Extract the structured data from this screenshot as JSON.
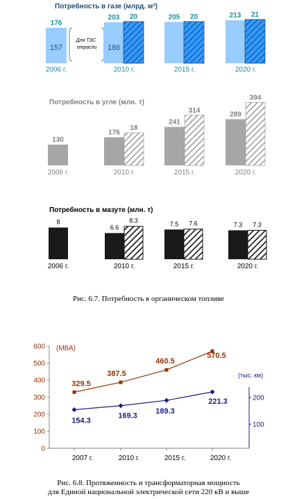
{
  "chart_data": [
    {
      "type": "bar",
      "title": "Потребность в газе (млрд. м³)",
      "categories": [
        "2006 г.",
        "2010 г.",
        "2015 г.",
        "2020 г."
      ],
      "series": [
        {
          "values": [
            176,
            203,
            205,
            213
          ]
        },
        {
          "values": [
            null,
            20,
            20,
            21
          ]
        }
      ],
      "sub_values": [
        157,
        186
      ],
      "sub_annotation": "Для ТЭС отрасли",
      "colors": {
        "light": "#99ccff",
        "hatch": "#3399ff",
        "text": "#1a8c9c",
        "axis": "#1a8c9c"
      }
    },
    {
      "type": "bar",
      "title": "Потребность в угле (млн. т)",
      "categories": [
        "2006 г.",
        "2010 г.",
        "2015 г.",
        "2020 г."
      ],
      "series": [
        {
          "values": [
            130,
            176,
            241,
            289
          ]
        },
        {
          "values": [
            null,
            18,
            314,
            394
          ]
        }
      ],
      "colors": {
        "solid": "#a6a6a6",
        "hatch": "#a6a6a6",
        "text": "#808080"
      }
    },
    {
      "type": "bar",
      "title": "Потребность в мазуте (млн. т)",
      "categories": [
        "2006 г.",
        "2010 г.",
        "2015 г.",
        "2020 г."
      ],
      "series": [
        {
          "values": [
            8,
            6.6,
            7.5,
            7.3
          ]
        },
        {
          "values": [
            null,
            8.3,
            7.6,
            7.3
          ]
        }
      ],
      "colors": {
        "solid": "#1a1a1a",
        "text": "#000000"
      }
    },
    {
      "type": "line",
      "categories": [
        "2007 г.",
        "2010 г.",
        "2015 г.",
        "2020 г."
      ],
      "left_axis": {
        "label": "(МВА)",
        "ticks": [
          0,
          100,
          200,
          300,
          400,
          500,
          600
        ],
        "ylim": [
          0,
          600
        ]
      },
      "right_axis": {
        "label": "(тыс. км)",
        "ticks": [
          100,
          200
        ]
      },
      "series": [
        {
          "values": [
            329.5,
            387.5,
            460.5,
            570.5
          ],
          "labels": [
            "329.5",
            "387.5",
            "460.5",
            "570.5"
          ],
          "color": "#993300",
          "axis": "left"
        },
        {
          "values": [
            154.3,
            169.3,
            189.3,
            221.3
          ],
          "labels": [
            "154.3",
            "169.3",
            "189.3",
            "221.3"
          ],
          "color": "#1a1a80",
          "axis": "right"
        }
      ]
    }
  ],
  "captions": {
    "fig67": "Рис. 6.7. Потребность в органическом топливе",
    "fig68_line1": "Рис. 6.8. Протяженность и трансформаторная мощность",
    "fig68_line2": "для Единой национальной электрической сети 220 кВ и выше"
  }
}
